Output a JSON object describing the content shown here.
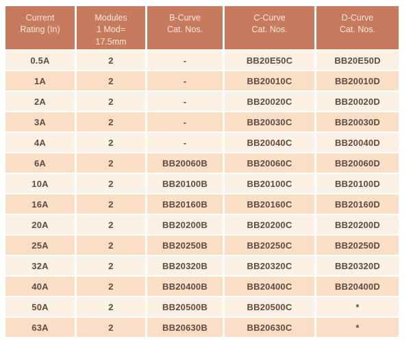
{
  "colors": {
    "header_bg": "#C87A5E",
    "header_text": "#F5E9E1",
    "row_light": "#FDF1E4",
    "row_dark": "#FADEC6",
    "body_text": "#5E4B41",
    "page_bg": "#FFFFFF"
  },
  "table": {
    "columns": [
      "Current\nRating (In)",
      "Modules\n1 Mod=\n17.5mm",
      "B-Curve\nCat. Nos.",
      "C-Curve\nCat. Nos.",
      "D-Curve\nCat. Nos."
    ],
    "rows": [
      [
        "0.5A",
        "2",
        "-",
        "BB20E50C",
        "BB20E50D"
      ],
      [
        "1A",
        "2",
        "-",
        "BB20010C",
        "BB20010D"
      ],
      [
        "2A",
        "2",
        "-",
        "BB20020C",
        "BB20020D"
      ],
      [
        "3A",
        "2",
        "-",
        "BB20030C",
        "BB20030D"
      ],
      [
        "4A",
        "2",
        "-",
        "BB20040C",
        "BB20040D"
      ],
      [
        "6A",
        "2",
        "BB20060B",
        "BB20060C",
        "BB20060D"
      ],
      [
        "10A",
        "2",
        "BB20100B",
        "BB20100C",
        "BB20100D"
      ],
      [
        "16A",
        "2",
        "BB20160B",
        "BB20160C",
        "BB20160D"
      ],
      [
        "20A",
        "2",
        "BB20200B",
        "BB20200C",
        "BB20200D"
      ],
      [
        "25A",
        "2",
        "BB20250B",
        "BB20250C",
        "BB20250D"
      ],
      [
        "32A",
        "2",
        "BB20320B",
        "BB20320C",
        "BB20320D"
      ],
      [
        "40A",
        "2",
        "BB20400B",
        "BB20400C",
        "BB20400D"
      ],
      [
        "50A",
        "2",
        "BB20500B",
        "BB20500C",
        "*"
      ],
      [
        "63A",
        "2",
        "BB20630B",
        "BB20630C",
        "*"
      ]
    ]
  }
}
